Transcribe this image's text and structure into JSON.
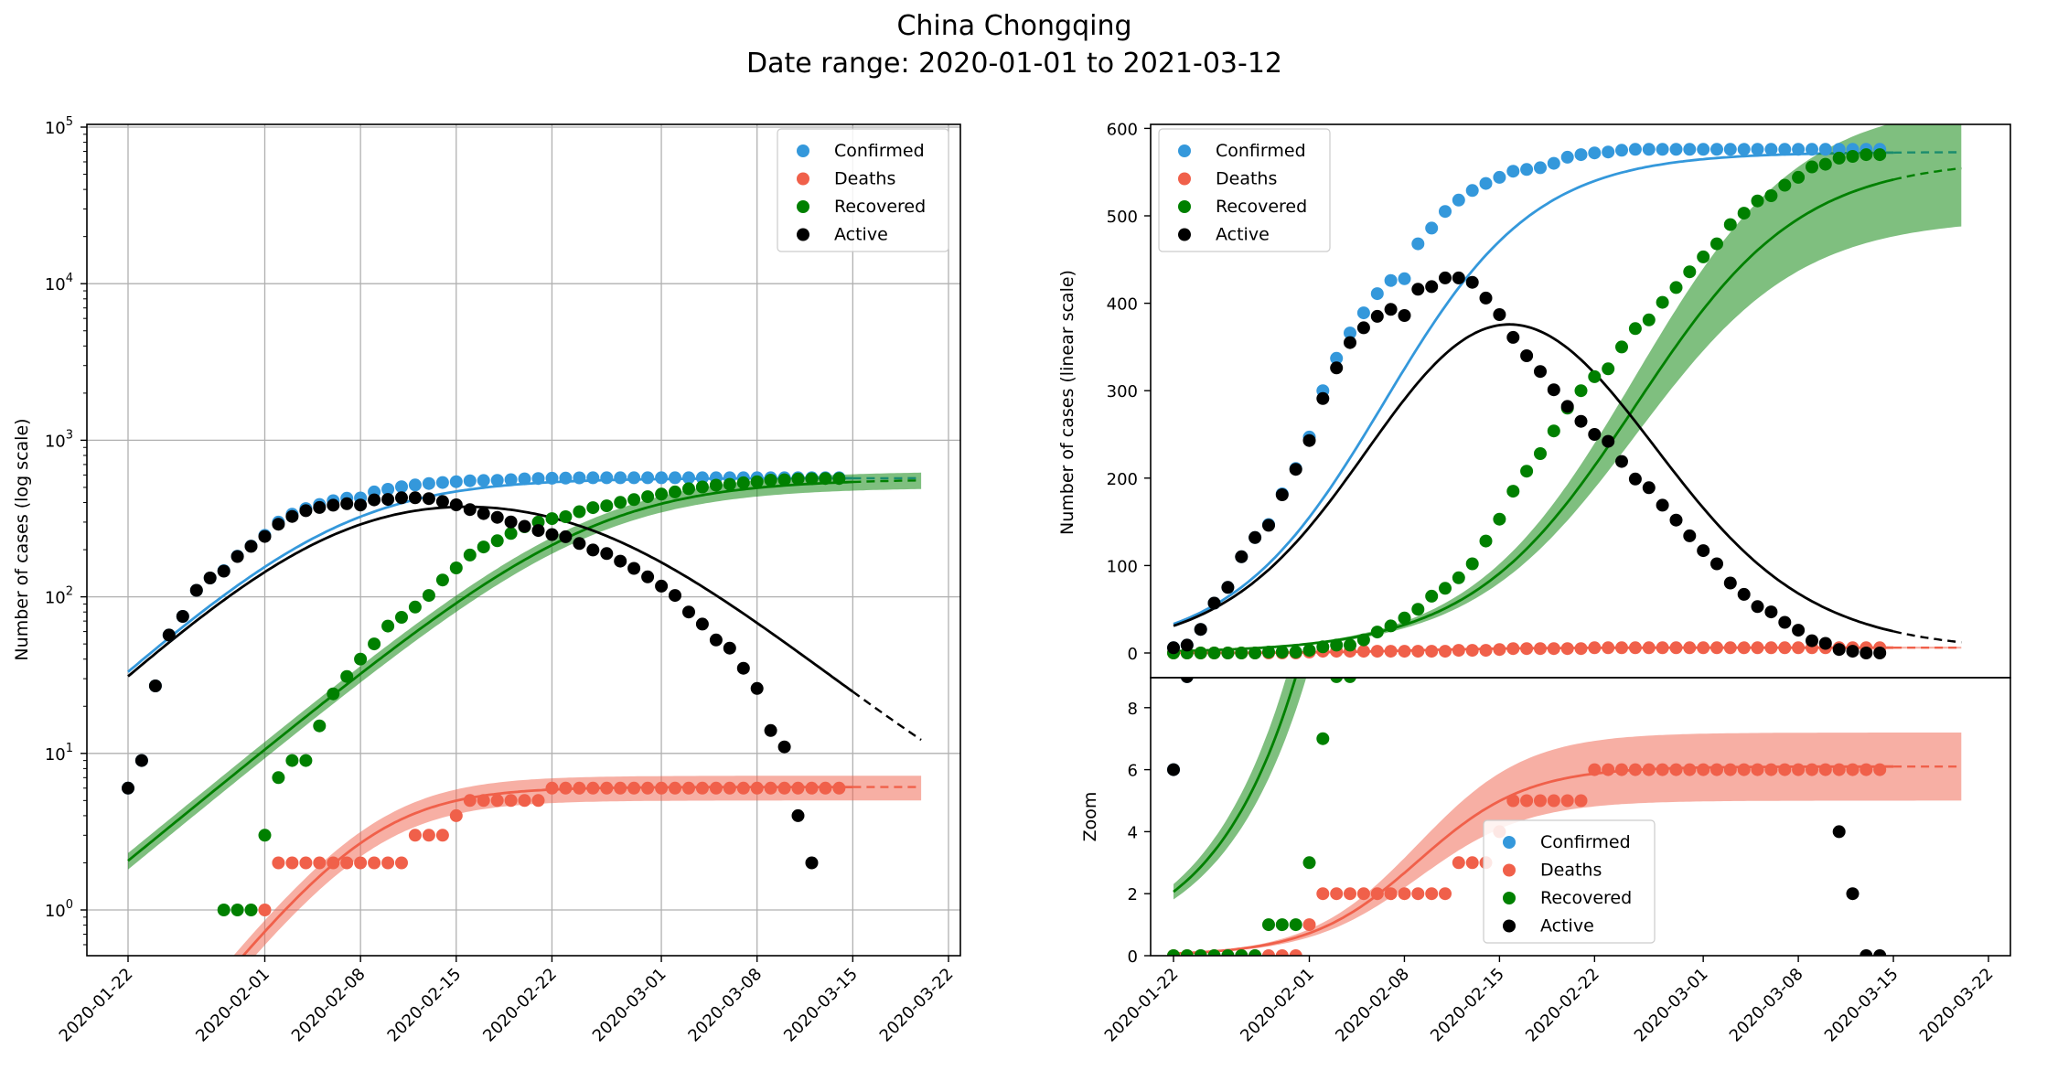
{
  "figure": {
    "title_line1": "China Chongqing",
    "title_line2": "Date range: 2020-01-01 to 2021-03-12"
  },
  "colors": {
    "confirmed": "#3498db",
    "deaths": "#f0604a",
    "recovered": "#008000",
    "active": "#000000",
    "grid": "#b0b0b0"
  },
  "legend": {
    "confirmed": "Confirmed",
    "deaths": "Deaths",
    "recovered": "Recovered",
    "active": "Active"
  },
  "x_ticks": [
    "2020-01-22",
    "2020-02-01",
    "2020-02-08",
    "2020-02-15",
    "2020-02-22",
    "2020-03-01",
    "2020-03-08",
    "2020-03-15",
    "2020-03-22"
  ],
  "left_panel": {
    "ylabel": "Number of cases (log scale)"
  },
  "right_panel": {
    "ylabel": "Number of cases (linear scale)",
    "y_ticks": [
      "0",
      "100",
      "200",
      "300",
      "400",
      "500",
      "600"
    ]
  },
  "zoom_panel": {
    "ylabel": "Zoom",
    "y_ticks": [
      "0",
      "2",
      "4",
      "6",
      "8"
    ]
  },
  "chart_data": [
    {
      "type": "scatter",
      "panel": "left",
      "yscale": "log",
      "ylim": [
        0.5,
        100000
      ],
      "xlim": [
        "2020-01-19",
        "2020-03-23"
      ],
      "grid": true,
      "legend_position": "upper right",
      "ylabel": "Number of cases (log scale)",
      "dates": [
        "2020-01-22",
        "2020-01-23",
        "2020-01-24",
        "2020-01-25",
        "2020-01-26",
        "2020-01-27",
        "2020-01-28",
        "2020-01-29",
        "2020-01-30",
        "2020-01-31",
        "2020-02-01",
        "2020-02-02",
        "2020-02-03",
        "2020-02-04",
        "2020-02-05",
        "2020-02-06",
        "2020-02-07",
        "2020-02-08",
        "2020-02-09",
        "2020-02-10",
        "2020-02-11",
        "2020-02-12",
        "2020-02-13",
        "2020-02-14",
        "2020-02-15",
        "2020-02-16",
        "2020-02-17",
        "2020-02-18",
        "2020-02-19",
        "2020-02-20",
        "2020-02-21",
        "2020-02-22",
        "2020-02-23",
        "2020-02-24",
        "2020-02-25",
        "2020-02-26",
        "2020-02-27",
        "2020-02-28",
        "2020-02-29",
        "2020-03-01",
        "2020-03-02",
        "2020-03-03",
        "2020-03-04",
        "2020-03-05",
        "2020-03-06",
        "2020-03-07",
        "2020-03-08",
        "2020-03-09",
        "2020-03-10",
        "2020-03-11",
        "2020-03-12",
        "2020-03-13",
        "2020-03-14"
      ],
      "series": [
        {
          "name": "Confirmed",
          "values": [
            6,
            9,
            27,
            57,
            75,
            110,
            132,
            147,
            182,
            211,
            247,
            300,
            337,
            366,
            389,
            411,
            426,
            428,
            468,
            486,
            505,
            518,
            529,
            537,
            544,
            551,
            553,
            555,
            560,
            567,
            570,
            572,
            573,
            575,
            576,
            576,
            576,
            576,
            576,
            576,
            576,
            576,
            576,
            576,
            576,
            576,
            576,
            576,
            576,
            576,
            576,
            576,
            576
          ]
        },
        {
          "name": "Deaths",
          "values": [
            0,
            0,
            0,
            0,
            0,
            0,
            0,
            0,
            0,
            0,
            1,
            2,
            2,
            2,
            2,
            2,
            2,
            2,
            2,
            2,
            2,
            3,
            3,
            3,
            4,
            5,
            5,
            5,
            5,
            5,
            5,
            6,
            6,
            6,
            6,
            6,
            6,
            6,
            6,
            6,
            6,
            6,
            6,
            6,
            6,
            6,
            6,
            6,
            6,
            6,
            6,
            6,
            6
          ]
        },
        {
          "name": "Recovered",
          "values": [
            0,
            0,
            0,
            0,
            0,
            0,
            0,
            1,
            1,
            1,
            3,
            7,
            9,
            9,
            15,
            24,
            31,
            40,
            50,
            65,
            74,
            86,
            102,
            128,
            153,
            185,
            208,
            228,
            254,
            280,
            300,
            316,
            325,
            350,
            371,
            381,
            401,
            418,
            436,
            453,
            468,
            490,
            503,
            517,
            523,
            535,
            544,
            556,
            559,
            566,
            568,
            570,
            570
          ]
        },
        {
          "name": "Active",
          "values": [
            6,
            9,
            27,
            57,
            75,
            110,
            132,
            146,
            181,
            210,
            243,
            291,
            326,
            355,
            372,
            385,
            393,
            386,
            416,
            419,
            429,
            429,
            424,
            406,
            387,
            361,
            340,
            322,
            301,
            282,
            265,
            250,
            242,
            219,
            199,
            189,
            169,
            152,
            134,
            117,
            102,
            80,
            67,
            53,
            47,
            35,
            26,
            14,
            11,
            4,
            2,
            0,
            0
          ]
        }
      ],
      "fits": [
        {
          "name": "Confirmed",
          "t0": 15.5,
          "k": 0.18,
          "cap": 573
        },
        {
          "name": "Deaths",
          "t0": 18.0,
          "k": 0.25,
          "cap": 6.1
        },
        {
          "name": "Recovered",
          "t0": 34.0,
          "k": 0.165,
          "cap": 565
        }
      ],
      "fit_end_solid": "2020-03-15",
      "fit_end_dashed": "2020-03-20"
    },
    {
      "type": "scatter",
      "panel": "right-top",
      "yscale": "linear",
      "ylim": [
        -30,
        605
      ],
      "legend_position": "upper left",
      "ylabel": "Number of cases (linear scale)",
      "series_ref": "same data as left panel"
    },
    {
      "type": "scatter",
      "panel": "right-bottom",
      "yscale": "linear",
      "ylim": [
        0,
        9
      ],
      "legend_position": "lower center",
      "ylabel": "Zoom",
      "series_ref": "same data as left panel"
    }
  ]
}
